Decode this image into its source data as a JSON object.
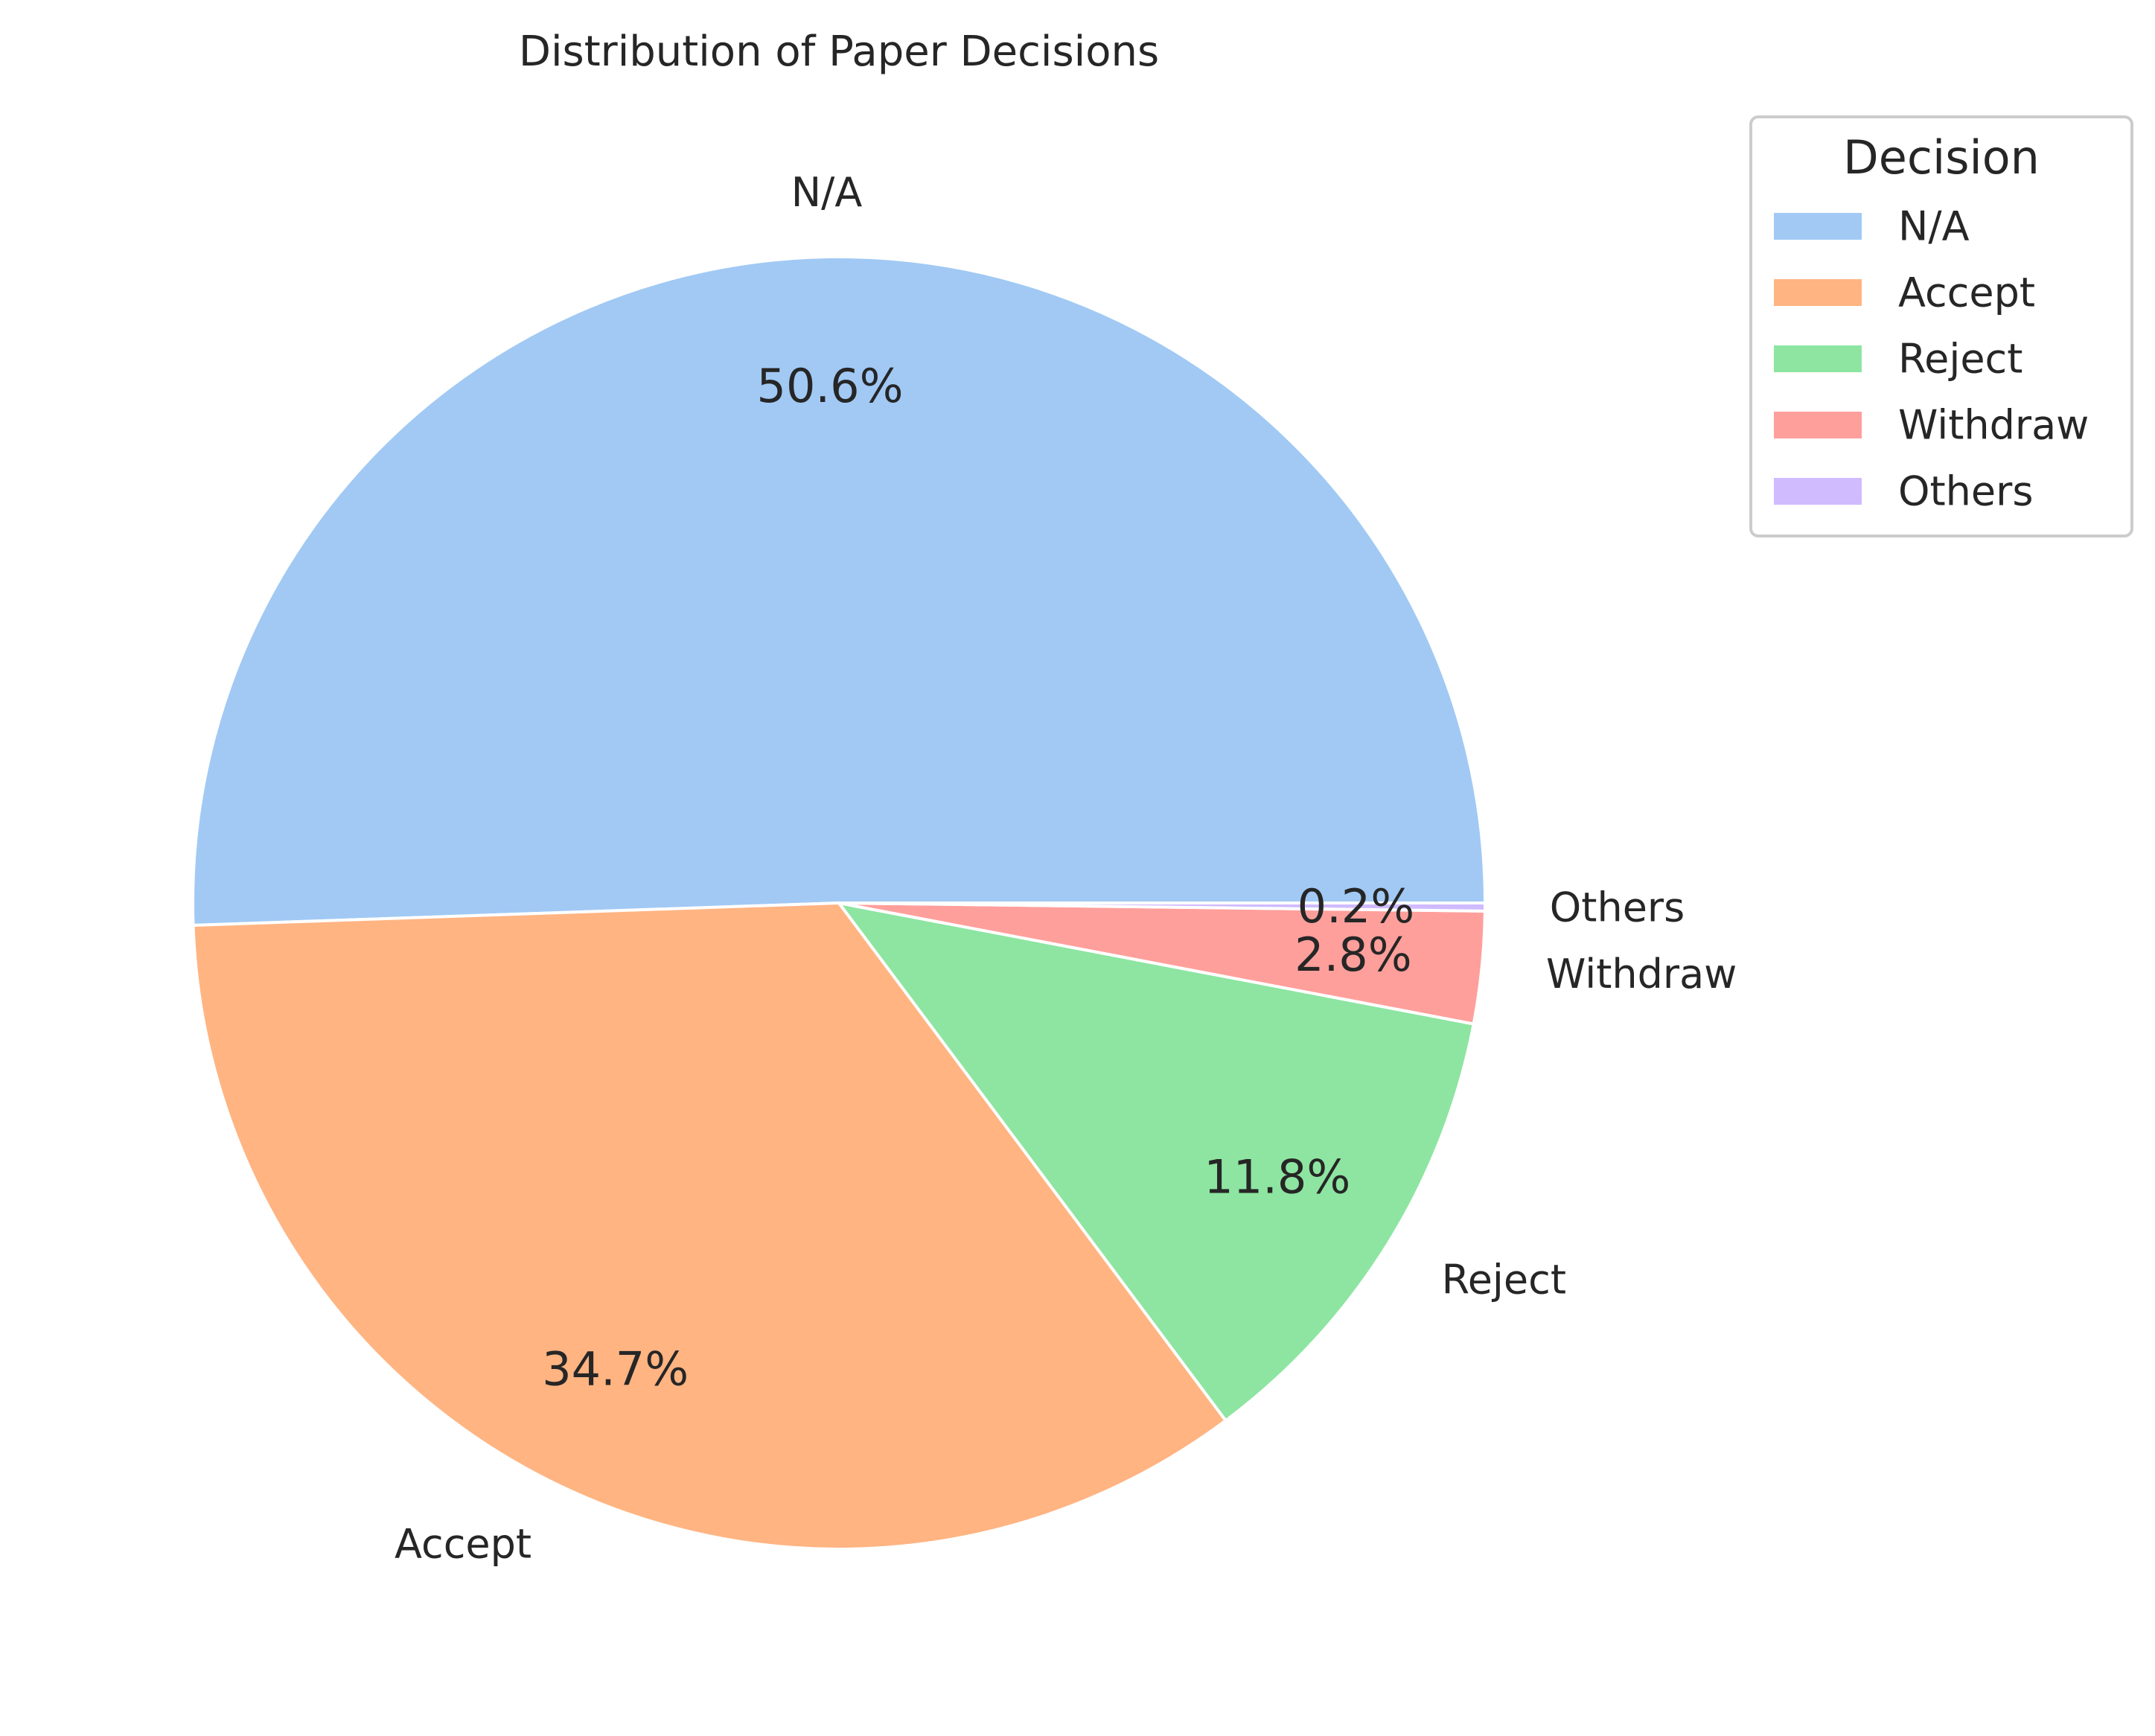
{
  "chart_data": {
    "type": "pie",
    "title": "Distribution of Paper Decisions",
    "categories": [
      "N/A",
      "Accept",
      "Reject",
      "Withdraw",
      "Others"
    ],
    "values": [
      50.6,
      34.7,
      11.8,
      2.8,
      0.2
    ],
    "value_labels": [
      "50.6%",
      "34.7%",
      "11.8%",
      "2.8%",
      "0.2%"
    ],
    "colors": [
      "#a1c9f4",
      "#ffb482",
      "#8de5a1",
      "#ff9f9b",
      "#d0bbff"
    ],
    "legend": {
      "title": "Decision",
      "placement": "upper-right, outside plot",
      "entries": [
        "N/A",
        "Accept",
        "Reject",
        "Withdraw",
        "Others"
      ]
    }
  }
}
